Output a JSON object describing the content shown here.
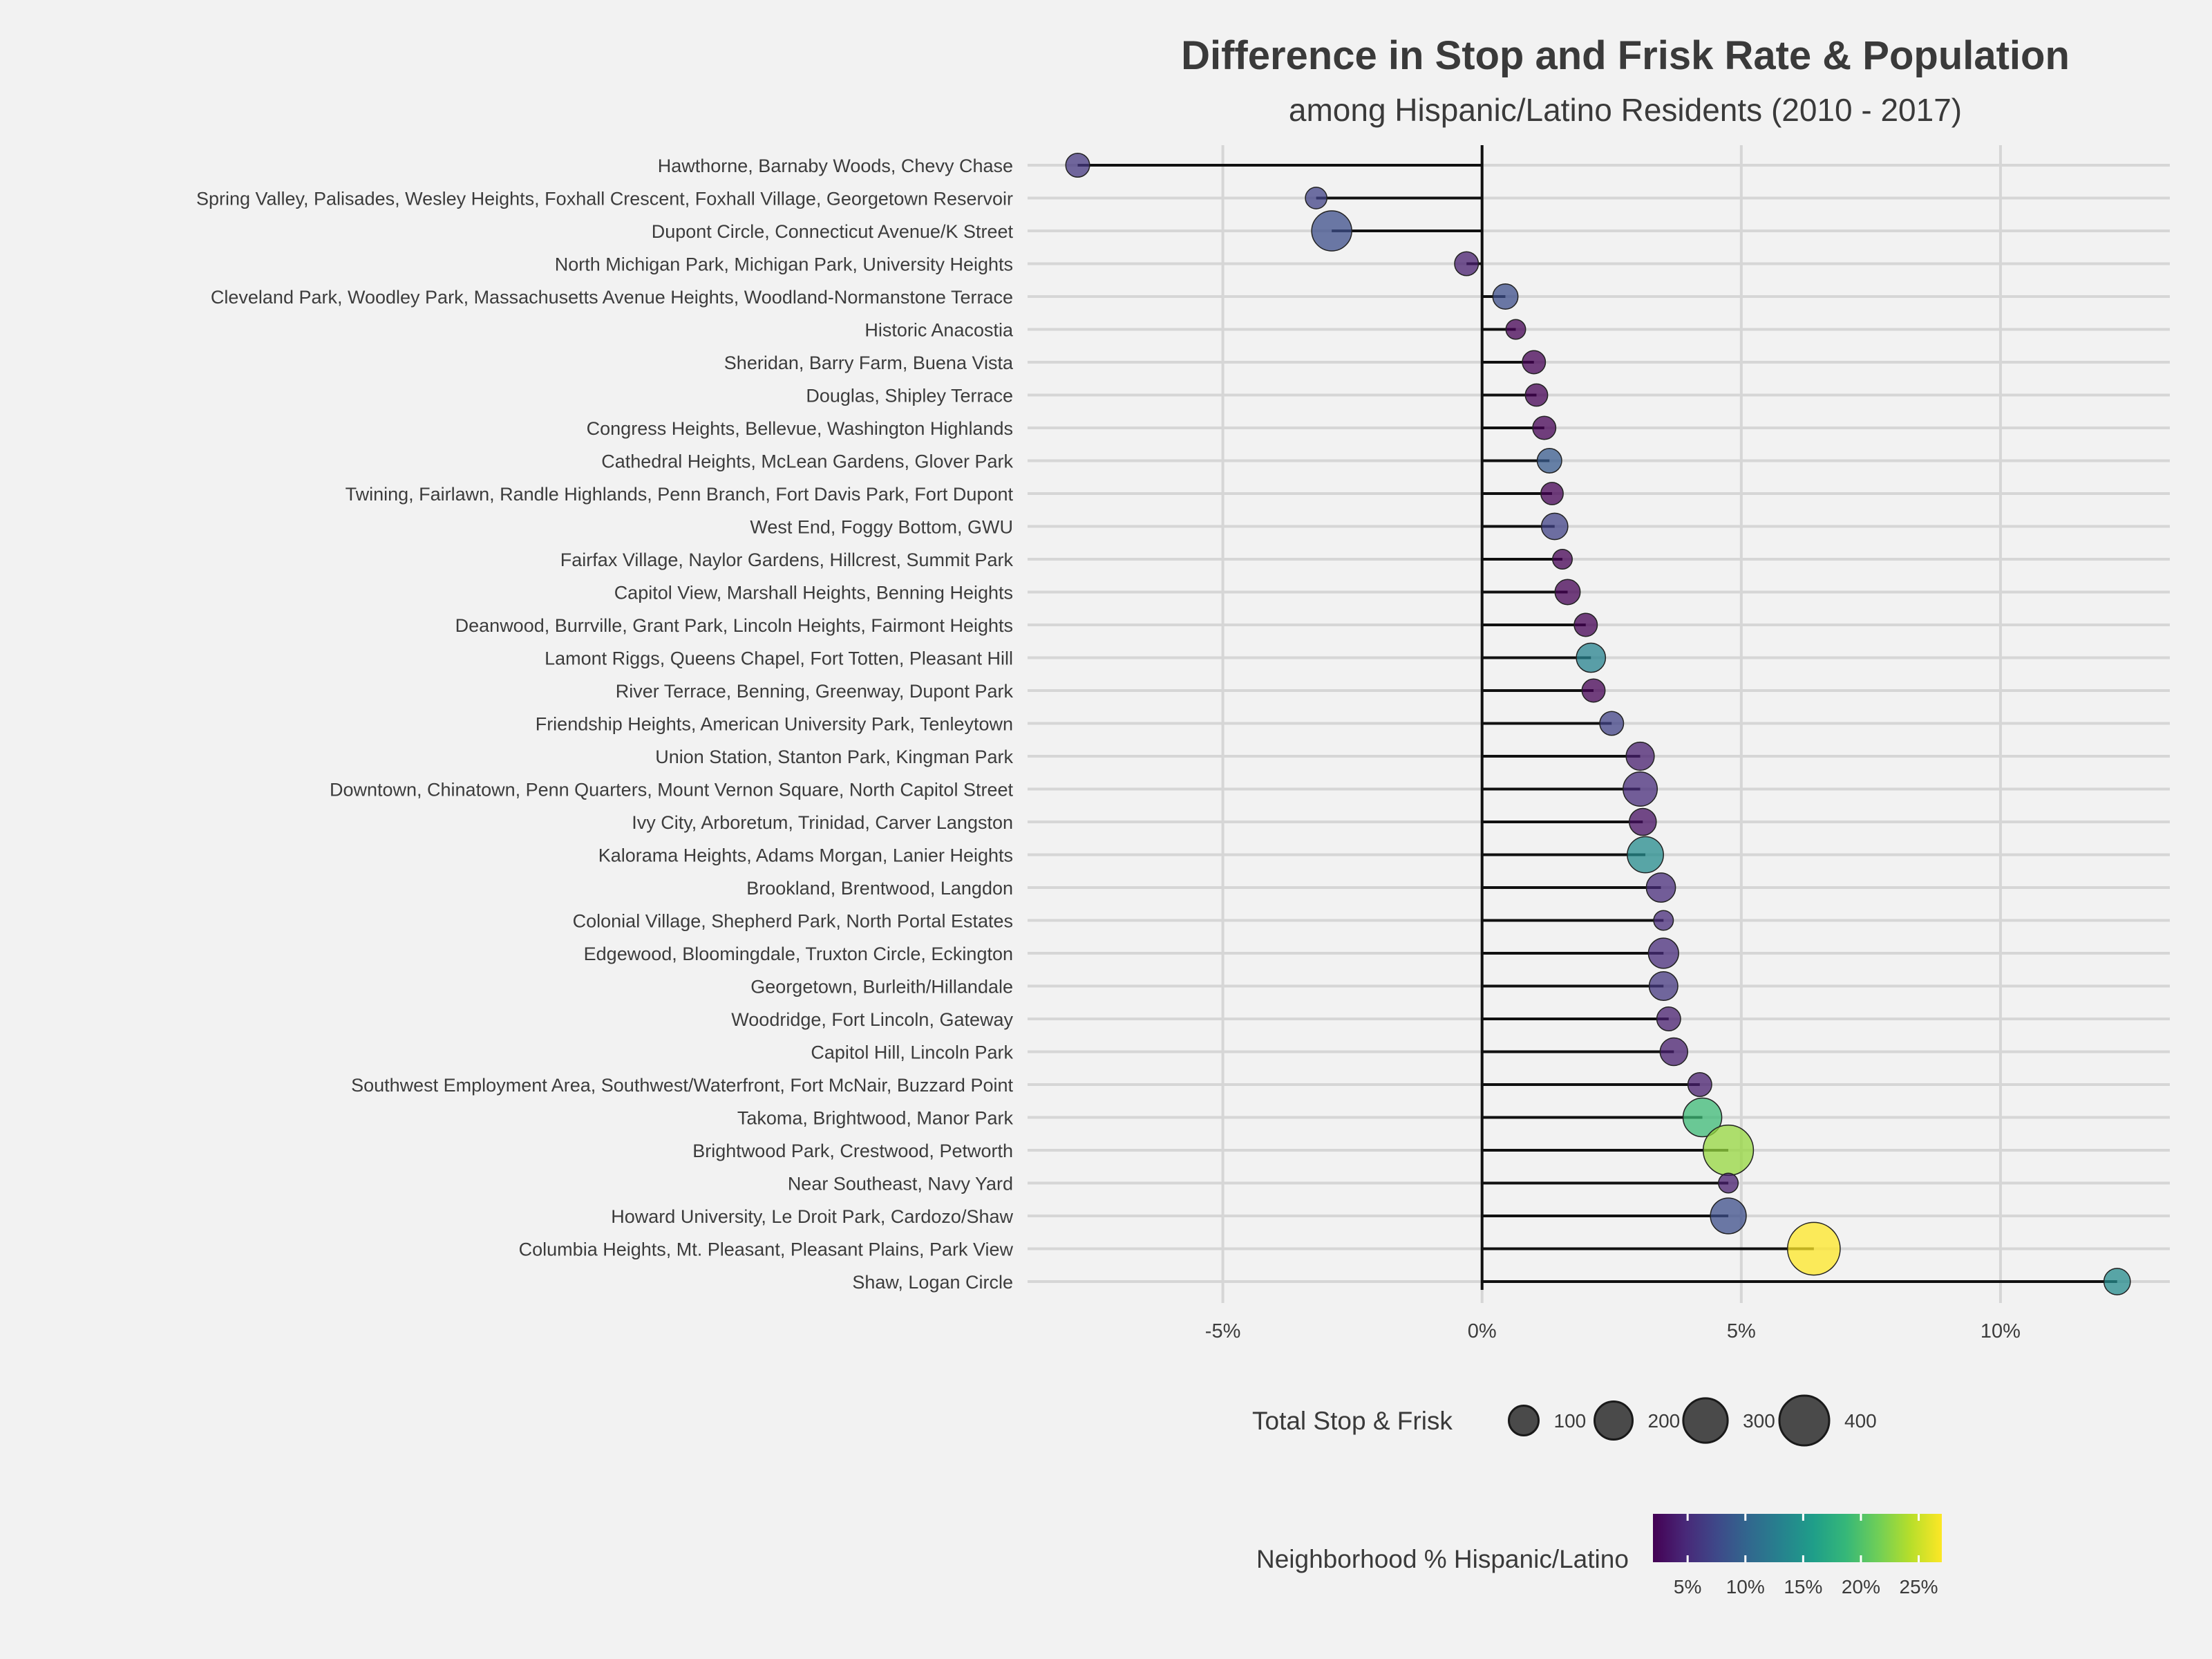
{
  "chart_data": {
    "type": "lollipop",
    "title": "Difference in Stop and Frisk Rate & Population",
    "subtitle": "among Hispanic/Latino Residents (2010 - 2017)",
    "xlim": [
      -8.5,
      13.0
    ],
    "x_ticks": [
      -5,
      0,
      5,
      10
    ],
    "x_tick_labels": [
      "-5%",
      "0%",
      "5%",
      "10%"
    ],
    "neighborhoods": [
      {
        "name": "Hawthorne, Barnaby Woods, Chevy Chase",
        "diff": -7.8,
        "total": 50,
        "pct_hispanic": 6
      },
      {
        "name": "Spring Valley, Palisades, Wesley Heights, Foxhall Crescent, Foxhall Village, Georgetown Reservoir",
        "diff": -3.2,
        "total": 35,
        "pct_hispanic": 7
      },
      {
        "name": "Dupont Circle, Connecticut Avenue/K Street",
        "diff": -2.9,
        "total": 230,
        "pct_hispanic": 8
      },
      {
        "name": "North Michigan Park, Michigan Park, University Heights",
        "diff": -0.3,
        "total": 50,
        "pct_hispanic": 4
      },
      {
        "name": "Cleveland Park, Woodley Park, Massachusetts Avenue Heights, Woodland-Normanstone Terrace",
        "diff": 0.45,
        "total": 60,
        "pct_hispanic": 8
      },
      {
        "name": "Historic Anacostia",
        "diff": 0.65,
        "total": 25,
        "pct_hispanic": 2
      },
      {
        "name": "Sheridan, Barry Farm, Buena Vista",
        "diff": 1.0,
        "total": 45,
        "pct_hispanic": 2
      },
      {
        "name": "Douglas, Shipley Terrace",
        "diff": 1.05,
        "total": 40,
        "pct_hispanic": 2
      },
      {
        "name": "Congress Heights, Bellevue, Washington Highlands",
        "diff": 1.2,
        "total": 45,
        "pct_hispanic": 2
      },
      {
        "name": "Cathedral Heights, McLean Gardens, Glover Park",
        "diff": 1.3,
        "total": 55,
        "pct_hispanic": 9
      },
      {
        "name": "Twining, Fairlawn, Randle Highlands, Penn Branch, Fort Davis Park, Fort Dupont",
        "diff": 1.35,
        "total": 40,
        "pct_hispanic": 2
      },
      {
        "name": "West End, Foggy Bottom, GWU",
        "diff": 1.4,
        "total": 70,
        "pct_hispanic": 7
      },
      {
        "name": "Fairfax Village, Naylor Gardens, Hillcrest, Summit Park",
        "diff": 1.55,
        "total": 25,
        "pct_hispanic": 2
      },
      {
        "name": "Capitol View, Marshall Heights, Benning Heights",
        "diff": 1.65,
        "total": 60,
        "pct_hispanic": 2
      },
      {
        "name": "Deanwood, Burrville, Grant Park, Lincoln Heights, Fairmont Heights",
        "diff": 2.0,
        "total": 45,
        "pct_hispanic": 2
      },
      {
        "name": "Lamont Riggs, Queens Chapel, Fort Totten, Pleasant Hill",
        "diff": 2.1,
        "total": 95,
        "pct_hispanic": 13
      },
      {
        "name": "River Terrace, Benning, Greenway, Dupont Park",
        "diff": 2.15,
        "total": 45,
        "pct_hispanic": 2
      },
      {
        "name": "Friendship Heights, American University Park, Tenleytown",
        "diff": 2.5,
        "total": 50,
        "pct_hispanic": 7
      },
      {
        "name": "Union Station, Stanton Park, Kingman Park",
        "diff": 3.05,
        "total": 85,
        "pct_hispanic": 4
      },
      {
        "name": "Downtown, Chinatown, Penn Quarters, Mount Vernon Square, North Capitol Street",
        "diff": 3.05,
        "total": 150,
        "pct_hispanic": 5
      },
      {
        "name": "Ivy City, Arboretum, Trinidad, Carver Langston",
        "diff": 3.1,
        "total": 75,
        "pct_hispanic": 3
      },
      {
        "name": "Kalorama Heights, Adams Morgan, Lanier Heights",
        "diff": 3.15,
        "total": 175,
        "pct_hispanic": 14
      },
      {
        "name": "Brookland, Brentwood, Langdon",
        "diff": 3.45,
        "total": 95,
        "pct_hispanic": 5
      },
      {
        "name": "Colonial Village, Shepherd Park, North Portal Estates",
        "diff": 3.5,
        "total": 25,
        "pct_hispanic": 5
      },
      {
        "name": "Edgewood, Bloomingdale, Truxton Circle, Eckington",
        "diff": 3.5,
        "total": 105,
        "pct_hispanic": 5
      },
      {
        "name": "Georgetown, Burleith/Hillandale",
        "diff": 3.5,
        "total": 90,
        "pct_hispanic": 6
      },
      {
        "name": "Woodridge, Fort Lincoln, Gateway",
        "diff": 3.6,
        "total": 50,
        "pct_hispanic": 4
      },
      {
        "name": "Capitol Hill, Lincoln Park",
        "diff": 3.7,
        "total": 80,
        "pct_hispanic": 4
      },
      {
        "name": "Southwest Employment Area, Southwest/Waterfront, Fort McNair, Buzzard Point",
        "diff": 4.2,
        "total": 50,
        "pct_hispanic": 4
      },
      {
        "name": "Takoma, Brightwood, Manor Park",
        "diff": 4.25,
        "total": 210,
        "pct_hispanic": 19
      },
      {
        "name": "Brightwood Park, Crestwood, Petworth",
        "diff": 4.75,
        "total": 410,
        "pct_hispanic": 23
      },
      {
        "name": "Near Southeast, Navy Yard",
        "diff": 4.75,
        "total": 25,
        "pct_hispanic": 4
      },
      {
        "name": "Howard University, Le Droit Park, Cardozo/Shaw",
        "diff": 4.75,
        "total": 170,
        "pct_hispanic": 8
      },
      {
        "name": "Columbia Heights, Mt. Pleasant, Pleasant Plains, Park View",
        "diff": 6.4,
        "total": 460,
        "pct_hispanic": 27
      },
      {
        "name": "Shaw, Logan Circle",
        "diff": 12.25,
        "total": 70,
        "pct_hispanic": 14
      }
    ],
    "size_legend": {
      "title": "Total Stop & Frisk",
      "values": [
        100,
        200,
        300,
        400
      ],
      "labels": [
        "100",
        "200",
        "300",
        "400"
      ]
    },
    "color_legend": {
      "title": "Neighborhood % Hispanic/Latino",
      "range": [
        2,
        27
      ],
      "ticks": [
        5,
        10,
        15,
        20,
        25
      ],
      "tick_labels": [
        "5%",
        "10%",
        "15%",
        "20%",
        "25%"
      ]
    },
    "colors": {
      "background": "#f2f2f2",
      "grid": "#d6d6d6",
      "stem": "#111111",
      "zero_line": "#111111",
      "viridis": [
        "#440154",
        "#482878",
        "#3e4989",
        "#31688e",
        "#26828e",
        "#1f9e89",
        "#35b779",
        "#6ece58",
        "#b5de2b",
        "#fde725"
      ]
    }
  }
}
